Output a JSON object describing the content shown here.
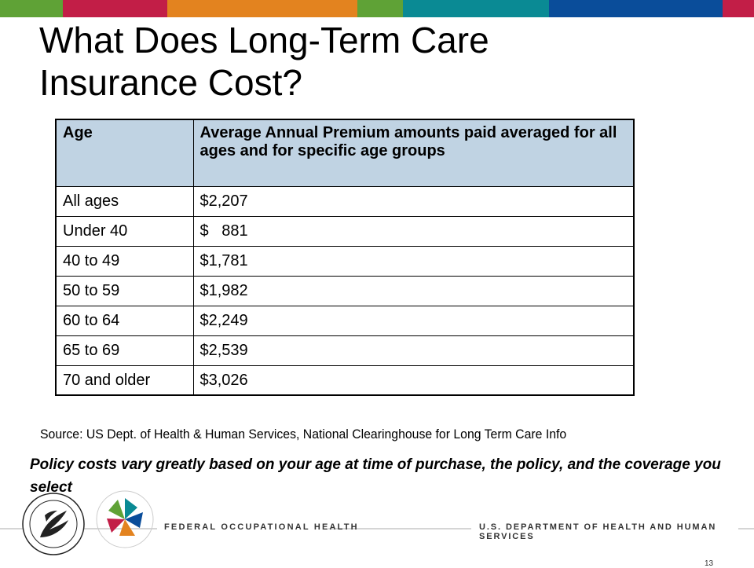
{
  "colors": {
    "top_bar": [
      "#5fa236",
      "#c21e47",
      "#e3831f",
      "#5fa236",
      "#0a8a94",
      "#0a4d9a",
      "#c21e47"
    ],
    "table_header_bg": "#c0d3e3"
  },
  "title": {
    "line1": "What Does Long-Term Care",
    "line2": "Insurance Cost?"
  },
  "table": {
    "headers": [
      "Age",
      "Average Annual Premium amounts paid averaged for all ages and for specific age groups"
    ],
    "rows": [
      [
        "All ages",
        "$2,207"
      ],
      [
        "Under 40",
        "$   881"
      ],
      [
        "40 to 49",
        "$1,781"
      ],
      [
        "50 to 59",
        "$1,982"
      ],
      [
        "60 to 64",
        "$2,249"
      ],
      [
        "65 to 69",
        "$2,539"
      ],
      [
        "70 and older",
        "$3,026"
      ]
    ]
  },
  "source": "Source: US Dept. of Health & Human Services, National Clearinghouse for Long Term Care Info",
  "note": "Policy costs vary greatly based on your age at time of purchase, the policy, and the coverage you select",
  "footer": {
    "left_label": "FEDERAL OCCUPATIONAL HEALTH",
    "right_label": "U.S. DEPARTMENT OF HEALTH AND HUMAN SERVICES",
    "page_number": "13",
    "seal_icon": "hhs-seal-icon",
    "logo_icon": "foh-pinwheel-logo-icon"
  }
}
